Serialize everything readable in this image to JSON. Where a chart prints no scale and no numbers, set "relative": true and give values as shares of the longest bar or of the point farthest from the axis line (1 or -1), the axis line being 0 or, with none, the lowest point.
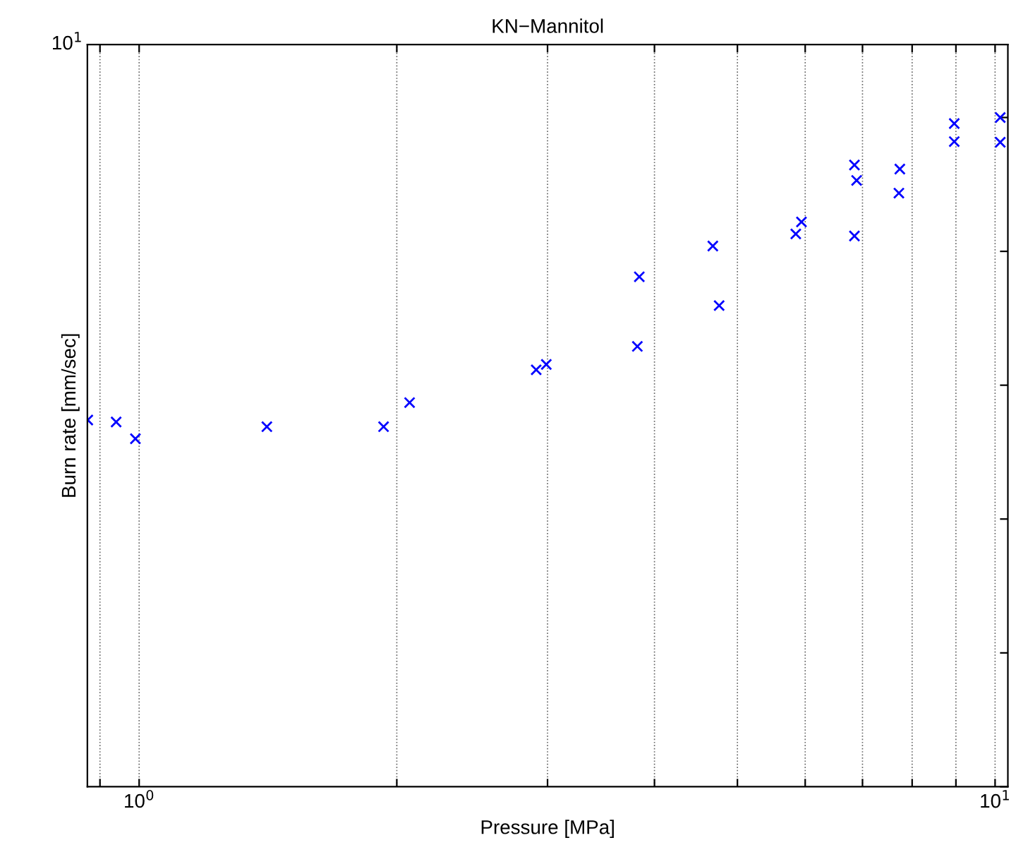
{
  "chart_data": {
    "type": "scatter",
    "title": "KN−Mannitol",
    "xlabel": "Pressure [MPa]",
    "ylabel": "Burn rate [mm/sec]",
    "log": "x",
    "grid": "x",
    "marker": "cross",
    "relative": true,
    "annotations": [
      "10$^{1}$"
    ],
    "xlim": [
      0.87,
      10.35
    ],
    "xticks": [
      {
        "value": 0.9,
        "label": null
      },
      {
        "value": 1,
        "label": "10$^{0}$"
      },
      {
        "value": 2,
        "label": null
      },
      {
        "value": 3,
        "label": null
      },
      {
        "value": 4,
        "label": null
      },
      {
        "value": 5,
        "label": null
      },
      {
        "value": 6,
        "label": null
      },
      {
        "value": 7,
        "label": null
      },
      {
        "value": 8,
        "label": null
      },
      {
        "value": 9,
        "label": null
      },
      {
        "value": 10,
        "label": "10$^{1}$"
      }
    ],
    "series": [
      {
        "color": "#0000ff",
        "x": [
          0.871,
          0.94,
          0.99,
          1.41,
          1.93,
          2.07,
          2.91,
          2.99,
          3.82,
          3.84,
          4.68,
          4.76,
          5.85,
          5.94,
          6.85,
          6.85,
          6.89,
          7.72,
          7.74,
          8.96,
          8.96,
          10.14,
          10.14
        ],
        "values": [
          0.548,
          0.545,
          0.52,
          0.538,
          0.538,
          0.574,
          0.623,
          0.631,
          0.658,
          0.762,
          0.808,
          0.719,
          0.826,
          0.844,
          0.823,
          0.929,
          0.906,
          0.887,
          0.923,
          0.991,
          0.964,
          1,
          0.963
        ]
      }
    ]
  }
}
